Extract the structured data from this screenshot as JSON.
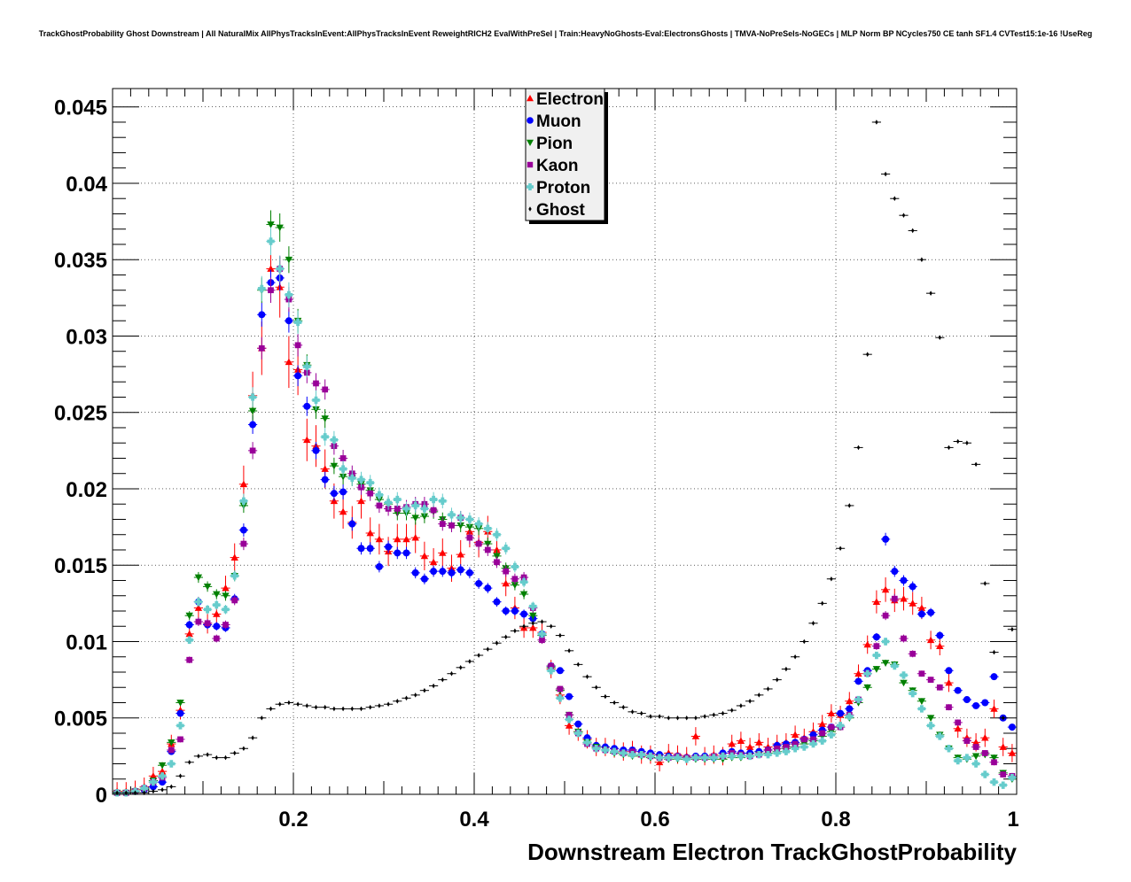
{
  "chart_data": {
    "type": "scatter",
    "title": "TrackGhostProbability Ghost Downstream | All NaturalMix AllPhysTracksInEvent:AllPhysTracksInEvent ReweightRICH2 EvalWithPreSel | Train:HeavyNoGhosts-Eval:ElectronsGhosts | TMVA-NoPreSels-NoGECs | MLP Norm BP NCycles750 CE tanh SF1.4 CVTest15:1e-16 !UseReg",
    "xlabel": "Downstream Electron TrackGhostProbability",
    "ylabel": "",
    "xlim": [
      0,
      1
    ],
    "ylim": [
      0,
      0.0462
    ],
    "grid": true,
    "legend_position": "top-center",
    "x_ticks": [
      "0.2",
      "0.4",
      "0.6",
      "0.8",
      "1"
    ],
    "y_ticks": [
      "0",
      "0.005",
      "0.01",
      "0.015",
      "0.02",
      "0.025",
      "0.03",
      "0.035",
      "0.04",
      "0.045"
    ],
    "x": [
      0.005,
      0.015,
      0.025,
      0.035,
      0.045,
      0.055,
      0.065,
      0.075,
      0.085,
      0.095,
      0.105,
      0.115,
      0.125,
      0.135,
      0.145,
      0.155,
      0.165,
      0.175,
      0.185,
      0.195,
      0.205,
      0.215,
      0.225,
      0.235,
      0.245,
      0.255,
      0.265,
      0.275,
      0.285,
      0.295,
      0.305,
      0.315,
      0.325,
      0.335,
      0.345,
      0.355,
      0.365,
      0.375,
      0.385,
      0.395,
      0.405,
      0.415,
      0.425,
      0.435,
      0.445,
      0.455,
      0.465,
      0.475,
      0.485,
      0.495,
      0.505,
      0.515,
      0.525,
      0.535,
      0.545,
      0.555,
      0.565,
      0.575,
      0.585,
      0.595,
      0.605,
      0.615,
      0.625,
      0.635,
      0.645,
      0.655,
      0.665,
      0.675,
      0.685,
      0.695,
      0.705,
      0.715,
      0.725,
      0.735,
      0.745,
      0.755,
      0.765,
      0.775,
      0.785,
      0.795,
      0.805,
      0.815,
      0.825,
      0.835,
      0.845,
      0.855,
      0.865,
      0.875,
      0.885,
      0.895,
      0.905,
      0.915,
      0.925,
      0.935,
      0.945,
      0.955,
      0.965,
      0.975,
      0.985,
      0.995
    ],
    "series": [
      {
        "name": "Electron",
        "marker": "triangle-up",
        "color": "#ff0000",
        "values": [
          0.0002,
          0.0002,
          0.0003,
          0.0005,
          0.0012,
          0.0015,
          0.0033,
          0.0055,
          0.0105,
          0.0122,
          0.0112,
          0.0118,
          0.0135,
          0.0155,
          0.0203,
          0.0261,
          0.0292,
          0.0344,
          0.0332,
          0.0283,
          0.0278,
          0.0232,
          0.0228,
          0.0213,
          0.0192,
          0.0185,
          0.0178,
          0.0192,
          0.0171,
          0.0167,
          0.0159,
          0.0167,
          0.0167,
          0.0168,
          0.0156,
          0.0152,
          0.0158,
          0.0148,
          0.0157,
          0.0172,
          0.0165,
          0.0172,
          0.016,
          0.0138,
          0.0122,
          0.0109,
          0.0109,
          0.0106,
          0.0082,
          0.0065,
          0.0045,
          0.0041,
          0.0036,
          0.0031,
          0.0031,
          0.003,
          0.0028,
          0.0029,
          0.0026,
          0.0026,
          0.0021,
          0.0027,
          0.0026,
          0.0025,
          0.0038,
          0.0025,
          0.0026,
          0.0025,
          0.0033,
          0.0035,
          0.0031,
          0.0034,
          0.0031,
          0.0033,
          0.0034,
          0.0039,
          0.0037,
          0.0041,
          0.0046,
          0.0053,
          0.0052,
          0.0061,
          0.0079,
          0.0098,
          0.0126,
          0.0134,
          0.0127,
          0.0128,
          0.0125,
          0.0122,
          0.0101,
          0.0097,
          0.0073,
          0.0043,
          0.0037,
          0.0034,
          0.0037,
          0.0056,
          0.0031,
          0.0027
        ]
      },
      {
        "name": "Muon",
        "marker": "circle",
        "color": "#0000ff",
        "values": [
          0.0001,
          0.0001,
          0.0002,
          0.0003,
          0.0005,
          0.0008,
          0.0028,
          0.0053,
          0.0111,
          0.0126,
          0.0111,
          0.011,
          0.0109,
          0.0128,
          0.0173,
          0.0242,
          0.0314,
          0.0335,
          0.0338,
          0.031,
          0.0274,
          0.0254,
          0.0225,
          0.0206,
          0.0197,
          0.0198,
          0.0177,
          0.0161,
          0.0161,
          0.0149,
          0.0162,
          0.0158,
          0.0158,
          0.0145,
          0.0141,
          0.0146,
          0.0146,
          0.0145,
          0.0147,
          0.0145,
          0.0138,
          0.0135,
          0.0126,
          0.012,
          0.012,
          0.0118,
          0.0115,
          0.0105,
          0.0084,
          0.0081,
          0.0064,
          0.0046,
          0.0037,
          0.0032,
          0.0031,
          0.003,
          0.0029,
          0.0029,
          0.0028,
          0.0027,
          0.0026,
          0.0025,
          0.0025,
          0.0024,
          0.0025,
          0.0025,
          0.0024,
          0.0027,
          0.0028,
          0.0027,
          0.0027,
          0.0028,
          0.0029,
          0.0032,
          0.0033,
          0.0034,
          0.0036,
          0.0039,
          0.0042,
          0.0044,
          0.0053,
          0.0056,
          0.0074,
          0.0081,
          0.0103,
          0.0167,
          0.0146,
          0.014,
          0.0136,
          0.0118,
          0.0119,
          0.0104,
          0.0081,
          0.0068,
          0.0062,
          0.0058,
          0.006,
          0.0077,
          0.005,
          0.0044
        ]
      },
      {
        "name": "Pion",
        "marker": "triangle-down",
        "color": "#008000",
        "values": [
          0.0001,
          0.0001,
          0.0002,
          0.0003,
          0.0009,
          0.0019,
          0.0034,
          0.006,
          0.0117,
          0.0142,
          0.0136,
          0.0131,
          0.013,
          0.0143,
          0.0189,
          0.0251,
          0.033,
          0.0373,
          0.0371,
          0.035,
          0.031,
          0.0281,
          0.0252,
          0.0246,
          0.0215,
          0.0208,
          0.0207,
          0.0203,
          0.0199,
          0.0193,
          0.019,
          0.0184,
          0.0184,
          0.0181,
          0.0182,
          0.0185,
          0.018,
          0.0176,
          0.0176,
          0.0175,
          0.0174,
          0.0164,
          0.0156,
          0.0148,
          0.0137,
          0.0131,
          0.0117,
          0.0104,
          0.0083,
          0.0068,
          0.0052,
          0.0041,
          0.0034,
          0.0031,
          0.0029,
          0.0027,
          0.0026,
          0.0025,
          0.0025,
          0.0024,
          0.0024,
          0.0023,
          0.0023,
          0.0023,
          0.0023,
          0.0023,
          0.0023,
          0.0023,
          0.0024,
          0.0024,
          0.0025,
          0.0026,
          0.0027,
          0.0028,
          0.003,
          0.0031,
          0.0033,
          0.0035,
          0.0038,
          0.0041,
          0.0044,
          0.005,
          0.006,
          0.007,
          0.0082,
          0.0086,
          0.0085,
          0.0073,
          0.0068,
          0.0061,
          0.005,
          0.0039,
          0.003,
          0.0024,
          0.0023,
          0.0025,
          0.0026,
          0.0024,
          0.0014,
          0.001
        ]
      },
      {
        "name": "Kaon",
        "marker": "square",
        "color": "#990099",
        "values": [
          0.0001,
          0.0001,
          0.0002,
          0.0004,
          0.0008,
          0.0011,
          0.0029,
          0.0036,
          0.0088,
          0.0113,
          0.0112,
          0.0102,
          0.0111,
          0.0127,
          0.0164,
          0.0225,
          0.0292,
          0.033,
          0.0344,
          0.0324,
          0.0294,
          0.0276,
          0.0269,
          0.0265,
          0.0228,
          0.022,
          0.021,
          0.0201,
          0.0197,
          0.0189,
          0.0187,
          0.0187,
          0.0188,
          0.019,
          0.019,
          0.0186,
          0.0177,
          0.0176,
          0.0181,
          0.0168,
          0.0164,
          0.016,
          0.0152,
          0.0146,
          0.0141,
          0.0142,
          0.0122,
          0.0101,
          0.0084,
          0.0069,
          0.0052,
          0.004,
          0.0033,
          0.003,
          0.0029,
          0.0028,
          0.0027,
          0.0028,
          0.0026,
          0.0025,
          0.0024,
          0.0024,
          0.0025,
          0.0024,
          0.0024,
          0.0024,
          0.0025,
          0.0025,
          0.0027,
          0.0026,
          0.0025,
          0.0026,
          0.0029,
          0.003,
          0.0031,
          0.0033,
          0.0036,
          0.0036,
          0.004,
          0.0044,
          0.0044,
          0.0052,
          0.0062,
          0.0079,
          0.0097,
          0.0117,
          0.0128,
          0.0102,
          0.0092,
          0.0079,
          0.0075,
          0.007,
          0.0057,
          0.0047,
          0.0035,
          0.0031,
          0.0027,
          0.0021,
          0.0013,
          0.0012
        ]
      },
      {
        "name": "Proton",
        "marker": "cross",
        "color": "#66cccc",
        "values": [
          0.0001,
          0.0001,
          0.0002,
          0.0004,
          0.0008,
          0.0012,
          0.002,
          0.0045,
          0.0101,
          0.0126,
          0.0121,
          0.0124,
          0.0121,
          0.0143,
          0.0192,
          0.026,
          0.0331,
          0.0362,
          0.0344,
          0.0327,
          0.0309,
          0.028,
          0.0258,
          0.0234,
          0.0232,
          0.0213,
          0.0207,
          0.0206,
          0.0204,
          0.0196,
          0.0191,
          0.0193,
          0.0187,
          0.0189,
          0.0187,
          0.0193,
          0.0192,
          0.0183,
          0.0181,
          0.018,
          0.0177,
          0.0174,
          0.017,
          0.0161,
          0.0149,
          0.0139,
          0.0123,
          0.0105,
          0.0081,
          0.0063,
          0.0049,
          0.004,
          0.0034,
          0.003,
          0.0029,
          0.0028,
          0.0027,
          0.0026,
          0.0026,
          0.0025,
          0.0024,
          0.0024,
          0.0024,
          0.0023,
          0.0024,
          0.0024,
          0.0024,
          0.0025,
          0.0025,
          0.0025,
          0.0025,
          0.0026,
          0.0026,
          0.0027,
          0.0028,
          0.003,
          0.0031,
          0.0033,
          0.0035,
          0.0039,
          0.0045,
          0.0051,
          0.0062,
          0.0079,
          0.0091,
          0.01,
          0.0084,
          0.0078,
          0.0066,
          0.0056,
          0.0045,
          0.0038,
          0.003,
          0.0022,
          0.0024,
          0.002,
          0.0013,
          0.0008,
          0.0006,
          0.0011
        ]
      },
      {
        "name": "Ghost",
        "marker": "small-diamond",
        "color": "#000000",
        "values": [
          0.0001,
          0.0001,
          0.0001,
          0.0001,
          0.0002,
          0.0003,
          0.0005,
          0.0012,
          0.0021,
          0.0025,
          0.0026,
          0.0024,
          0.0024,
          0.0027,
          0.003,
          0.0037,
          0.005,
          0.0056,
          0.0059,
          0.006,
          0.0059,
          0.0058,
          0.0057,
          0.0057,
          0.0056,
          0.0056,
          0.0056,
          0.0056,
          0.0057,
          0.0058,
          0.0059,
          0.0061,
          0.0063,
          0.0065,
          0.0068,
          0.0071,
          0.0075,
          0.0079,
          0.0083,
          0.0087,
          0.0091,
          0.0095,
          0.0099,
          0.0103,
          0.0107,
          0.011,
          0.0112,
          0.0113,
          0.011,
          0.0104,
          0.0094,
          0.0085,
          0.0077,
          0.007,
          0.0064,
          0.006,
          0.0057,
          0.0054,
          0.0053,
          0.0051,
          0.0051,
          0.005,
          0.005,
          0.005,
          0.005,
          0.0051,
          0.0052,
          0.0053,
          0.0055,
          0.0058,
          0.0061,
          0.0065,
          0.0069,
          0.0075,
          0.0082,
          0.009,
          0.01,
          0.0112,
          0.0125,
          0.0141,
          0.0161,
          0.0189,
          0.0227,
          0.0288,
          0.044,
          0.0406,
          0.039,
          0.0379,
          0.0369,
          0.035,
          0.0328,
          0.0299,
          0.0227,
          0.0231,
          0.023,
          0.0216,
          0.0138,
          0.0093,
          0.005,
          0.0108
        ]
      }
    ]
  }
}
